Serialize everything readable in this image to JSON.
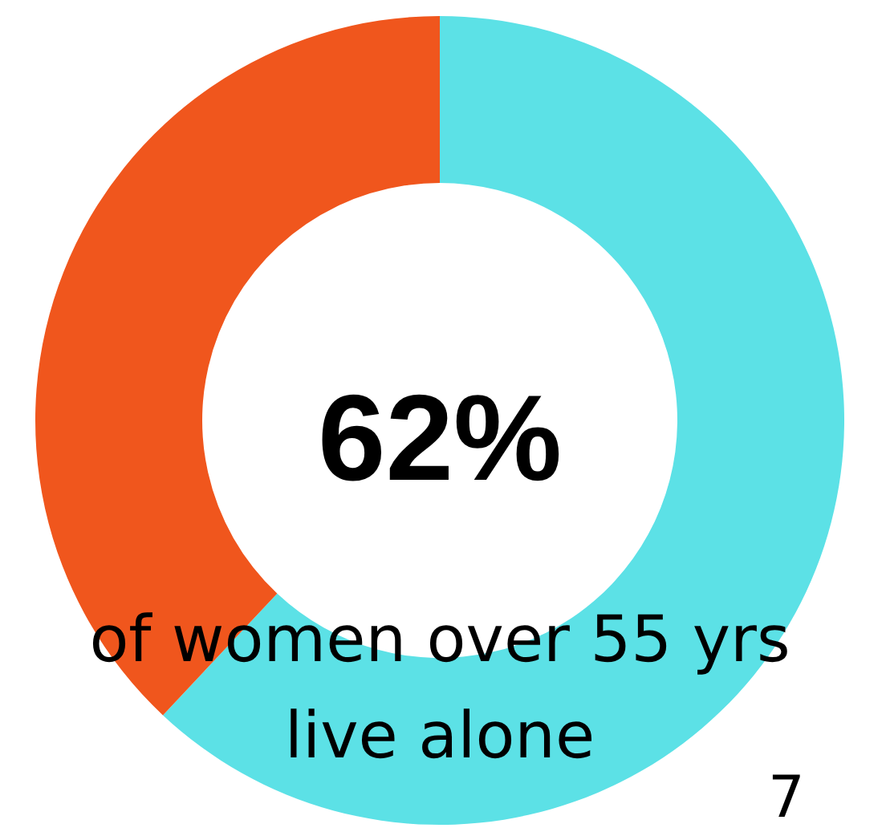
{
  "chart_data": {
    "type": "donut",
    "categories": [
      null,
      null
    ],
    "values": [
      62,
      38
    ],
    "colors": [
      "#5ce1e6",
      "#f0561d"
    ],
    "value_labels": [
      "62%",
      null
    ],
    "annotations": [
      "of women over 55 yrs",
      "live alone",
      "7"
    ]
  }
}
